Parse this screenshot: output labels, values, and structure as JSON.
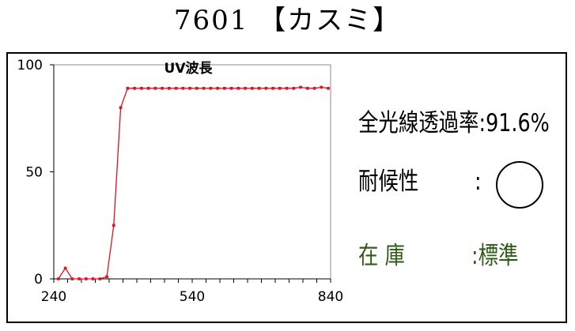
{
  "title": "7601 【カスミ】",
  "info": {
    "transmittance": "全光線透過率:91.6%",
    "weather_label": "耐候性",
    "weather_separator": ":",
    "weather_icon": "circle-icon",
    "stock_label": "在 庫",
    "stock_value": ":標準"
  },
  "colors": {
    "series": "#e01020",
    "stock_text": "#2e5c16"
  },
  "chart_data": {
    "type": "line",
    "title": "UV波長",
    "xlabel": "",
    "ylabel": "",
    "xlim": [
      240,
      840
    ],
    "ylim": [
      0,
      100
    ],
    "xticks": [
      240,
      540,
      840
    ],
    "yticks": [
      0,
      50,
      100
    ],
    "grid": false,
    "series": [
      {
        "x": [
          250,
          265,
          280,
          295,
          310,
          325,
          340,
          355,
          370,
          385,
          400,
          415,
          430,
          445,
          460,
          475,
          490,
          505,
          520,
          535,
          550,
          565,
          580,
          595,
          610,
          625,
          640,
          655,
          670,
          685,
          700,
          715,
          730,
          745,
          760,
          775,
          790,
          805,
          820,
          835
        ],
        "y": [
          0,
          5,
          0,
          0,
          0,
          0,
          0,
          1,
          25,
          80,
          89,
          89,
          89,
          89,
          89,
          89,
          89,
          89,
          89,
          89,
          89,
          89,
          89,
          89,
          89,
          89,
          89,
          89,
          89,
          89,
          89,
          89,
          89,
          89,
          89,
          89.5,
          89,
          89,
          89.5,
          89
        ]
      }
    ]
  }
}
